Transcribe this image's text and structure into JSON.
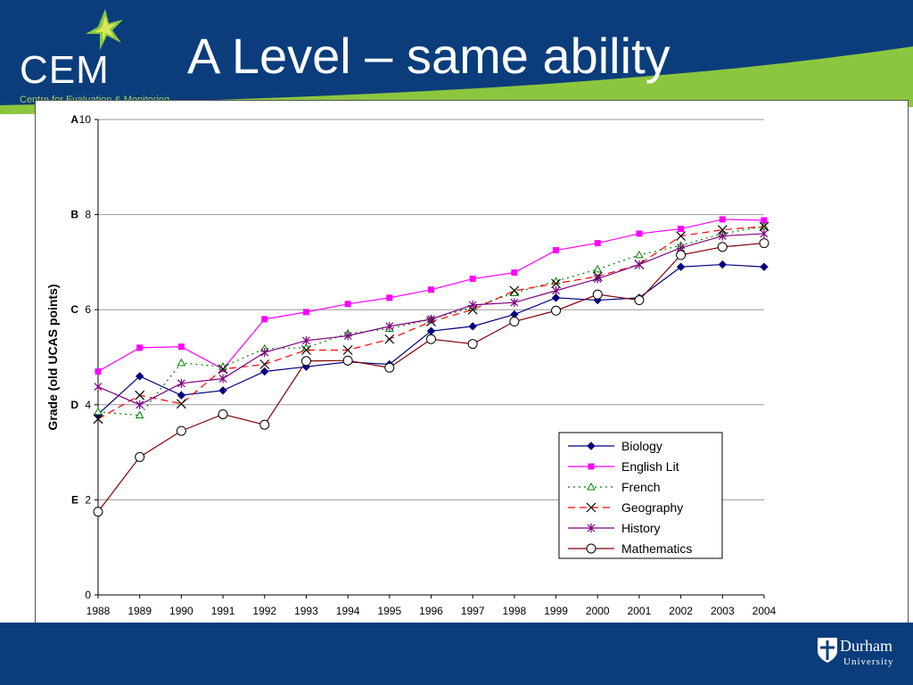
{
  "header": {
    "title": "A Level – same ability",
    "logo_text": "CEM",
    "logo_subtitle": "Centre for Evaluation & Monitoring"
  },
  "footer": {
    "durham_name": "Durham",
    "durham_university": "University"
  },
  "colors": {
    "header_blue": "#0b3d7c",
    "accent_green": "#8cc63f"
  },
  "chart_data": {
    "type": "line",
    "ylabel": "Grade (old UCAS points)",
    "xlabel": "",
    "ylim": [
      0,
      10
    ],
    "yticks": [
      0,
      2,
      4,
      6,
      8,
      10
    ],
    "grade_labels": [
      {
        "label": "A",
        "value": 10
      },
      {
        "label": "B",
        "value": 8
      },
      {
        "label": "C",
        "value": 6
      },
      {
        "label": "D",
        "value": 4
      },
      {
        "label": "E",
        "value": 2
      }
    ],
    "grid": "horizontal",
    "legend_position": "bottom-right",
    "categories": [
      "1988",
      "1989",
      "1990",
      "1991",
      "1992",
      "1993",
      "1994",
      "1995",
      "1996",
      "1997",
      "1998",
      "1999",
      "2000",
      "2001",
      "2002",
      "2003",
      "2004"
    ],
    "series": [
      {
        "name": "Biology",
        "color": "#000080",
        "dash": "",
        "marker": "diamond",
        "values": [
          3.8,
          4.6,
          4.2,
          4.3,
          4.7,
          4.8,
          4.9,
          4.85,
          5.55,
          5.65,
          5.9,
          6.25,
          6.2,
          6.25,
          6.9,
          6.95,
          6.9
        ]
      },
      {
        "name": "English Lit",
        "color": "#ff00ff",
        "dash": "",
        "marker": "square",
        "values": [
          4.7,
          5.2,
          5.22,
          4.75,
          5.8,
          5.95,
          6.12,
          6.25,
          6.42,
          6.65,
          6.78,
          7.25,
          7.4,
          7.6,
          7.7,
          7.9,
          7.88
        ]
      },
      {
        "name": "French",
        "color": "#008000",
        "dash": "2,4",
        "marker": "triangle",
        "values": [
          3.85,
          3.78,
          4.88,
          4.8,
          5.18,
          5.2,
          5.5,
          5.6,
          5.8,
          6.05,
          6.35,
          6.6,
          6.85,
          7.15,
          7.35,
          7.6,
          7.75
        ]
      },
      {
        "name": "Geography",
        "color": "#ff0000",
        "dash": "8,5",
        "marker": "x",
        "values": [
          3.7,
          4.2,
          4.02,
          4.75,
          4.85,
          5.15,
          5.15,
          5.38,
          5.75,
          6.0,
          6.4,
          6.55,
          6.7,
          6.95,
          7.55,
          7.68,
          7.75
        ]
      },
      {
        "name": "History",
        "color": "#800080",
        "dash": "",
        "marker": "star",
        "values": [
          4.38,
          4.0,
          4.45,
          4.55,
          5.1,
          5.35,
          5.45,
          5.65,
          5.8,
          6.1,
          6.15,
          6.4,
          6.65,
          6.95,
          7.3,
          7.55,
          7.6
        ]
      },
      {
        "name": "Mathematics",
        "color": "#800000",
        "dash": "",
        "marker": "circle",
        "values": [
          1.75,
          2.9,
          3.45,
          3.8,
          3.58,
          4.92,
          4.93,
          4.78,
          5.38,
          5.28,
          5.75,
          5.98,
          6.32,
          6.2,
          7.15,
          7.32,
          7.4
        ]
      }
    ]
  }
}
